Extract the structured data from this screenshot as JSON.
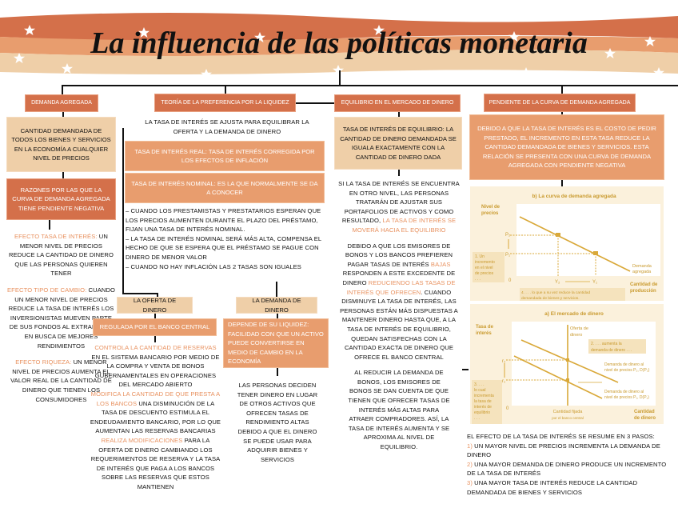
{
  "title": "La influencia de las políticas monetaria",
  "col1": {
    "header": "Demanda agregada",
    "definition": "Cantidad demandada de todos los bienes y servicios en la economía a cualquier nivel de precios",
    "reasons": "Razones por las que la curva de demanda agregada tiene pendiente negativa",
    "effects": [
      {
        "label": "Efecto tasa de interés:",
        "text": " un menor nivel de precios reduce la cantidad de dinero que las personas quieren tener"
      },
      {
        "label": "Efecto tipo de cambio:",
        "text": " cuando un menor nivel de precios reduce la tasa de interés los inversionistas mueven parte de sus fondos al extranjero en busca de mejores rendimientos"
      },
      {
        "label": "Efecto riqueza:",
        "text": " un menor nivel de precios aumenta el valor real de la cantidad de dinero que tienen los consumidores"
      }
    ]
  },
  "col2": {
    "header": "Teoría de la preferencia por la liquidez",
    "intro": "La tasa de interés se ajusta para equilibrar la oferta y la demanda de dinero",
    "real_rate": "Tasa de interés real: tasa de interés corregida por los efectos de inflación",
    "nominal_rate": "Tasa de interés nominal: es la que normalmente se da a conocer",
    "bullets": [
      "– Cuando los prestamistas y prestatarios esperan que los precios aumenten durante el plazo del préstamo, fijan una tasa de interés nominal.",
      "– La tasa de interés nominal será más alta, compensa el hecho de que se espera que el préstamo se pague con dinero de menor valor",
      "– Cuando no hay inflación las 2 tasas son iguales"
    ],
    "supply": {
      "title": "La oferta de dinero",
      "regulated": "Regulada por el banco central",
      "items": [
        {
          "label": "Controla la cantidad de reservas",
          "text": " en el sistema bancario por medio de la compra y venta de bonos gubernamentales en operaciones del mercado abierto"
        },
        {
          "label": "Modifica la cantidad de que presta a los bancos",
          "text": " una disminución de la tasa de descuento estimula el endeudamiento bancario, por lo que aumentan las reservas bancarias"
        },
        {
          "label": "Realiza modificaciones",
          "text": " para la oferta de dinero cambiando los requerimientos de reserva y la tasa de interés que paga a los bancos sobre las reservas que estos mantienen"
        }
      ]
    },
    "demand": {
      "title": "La demanda de dinero",
      "liquidity": "Depende de su liquidez: facilidad con que un activo puede convertirse en medio de cambio en la economía",
      "text": "Las personas deciden tener dinero en lugar de otros activos que ofrecen tasas de rendimiento altas debido a que el dinero se puede usar para adquirir bienes y servicios"
    }
  },
  "col3": {
    "header": "Equilibrio en el mercado de dinero",
    "definition": "Tasa de interés de equilibrio: la cantidad de dinero demandada se iguala exactamente con la cantidad de dinero dada",
    "p1": {
      "text": "Si la tasa de interés se encuentra en otro nivel, las personas tratarán de ajustar sus portafolios de activos y como resultado, ",
      "hl": "la tasa de interés se moverá hacia el equilibrio"
    },
    "p2": {
      "a": "Debido a que los emisores de bonos y los bancos prefieren pagar tasas de interés ",
      "hl1": "bajas",
      "b": " responden a este excedente de dinero ",
      "hl2": "reduciendo las tasas de interés que ofrecen",
      "c": ". Cuando disminuye la tasa de interés, las personas están más dispuestas a mantener dinero hasta que, a la tasa de interés de equilibrio, quedan satisfechas con la cantidad exacta de dinero que ofrece el banco central"
    },
    "p3": "Al reducir la demanda de bonos, los emisores de bonos se dan cuenta de que tienen que ofrecer tasas de interés más altas para atraer compradores. Así, la tasa de interés aumenta y se aproxima al nivel de equilibrio."
  },
  "col4": {
    "header": "Pendiente de la curva de demanda agregada",
    "explanation": "Debido a que la tasa de interés es el costo de pedir prestado, el incremento en esta tasa reduce la cantidad demandada de bienes y servicios. Esta relación se presenta con una curva de demanda agregada con pendiente negativa",
    "chart_ad": {
      "title": "b) La curva de demanda agregada",
      "ylabel1": "Nivel de",
      "ylabel2": "precios",
      "xlabel1": "Cantidad de",
      "xlabel2": "producción",
      "p2": "P₂",
      "p1": "P₁",
      "y2": "Y₂",
      "y1": "Y₁",
      "origin": "0",
      "curve1": "Demanda",
      "curve2": "agregada",
      "note1": [
        "1. Un",
        "incremento",
        "en el nivel",
        "de precios",
        ". . ."
      ],
      "note4": [
        "4. . . . lo que a su vez reduce la cantidad",
        "demandada de bienes y servicios."
      ]
    },
    "chart_money": {
      "title": "a) El mercado de dinero",
      "ylabel1": "Tasa de",
      "ylabel2": "interés",
      "xlabel1": "Cantidad",
      "xlabel2": "de dinero",
      "supply1": "Oferta de",
      "supply2": "dinero",
      "r2": "r₂",
      "r1": "r₁",
      "origin": "0",
      "note2": [
        "2. . . . aumenta la",
        "demanda de dinero . . ."
      ],
      "d2": [
        "Demanda de dinero al",
        "nivel de precios  P₂, D(P₂)"
      ],
      "d1": [
        "Demanda de dinero al",
        "nivel de precios P₁, D(P₁)"
      ],
      "fixed1": "Cantidad fijada",
      "fixed2": "por el banco central",
      "note3": [
        "3. . . .",
        "lo cual",
        "incrementa",
        "la tasa de",
        "interés de",
        "equilibrio",
        ". . ."
      ]
    },
    "summary": {
      "intro": "El efecto de la tasa de interés se resume en 3 pasos:",
      "steps": [
        {
          "n": "1)",
          "text": " un mayor nivel de precios incrementa la demanda de dinero"
        },
        {
          "n": "2)",
          "text": " una mayor demanda de dinero produce un incremento de la tasa de interés"
        },
        {
          "n": "3)",
          "text": " una mayor tasa de interés reduce la cantidad demandada de bienes y servicios"
        }
      ]
    }
  },
  "colors": {
    "dark": "#d4704a",
    "mid": "#e89d6e",
    "light": "#efcfa8",
    "highlight": "#e8915f",
    "chart": "#d9a838"
  }
}
